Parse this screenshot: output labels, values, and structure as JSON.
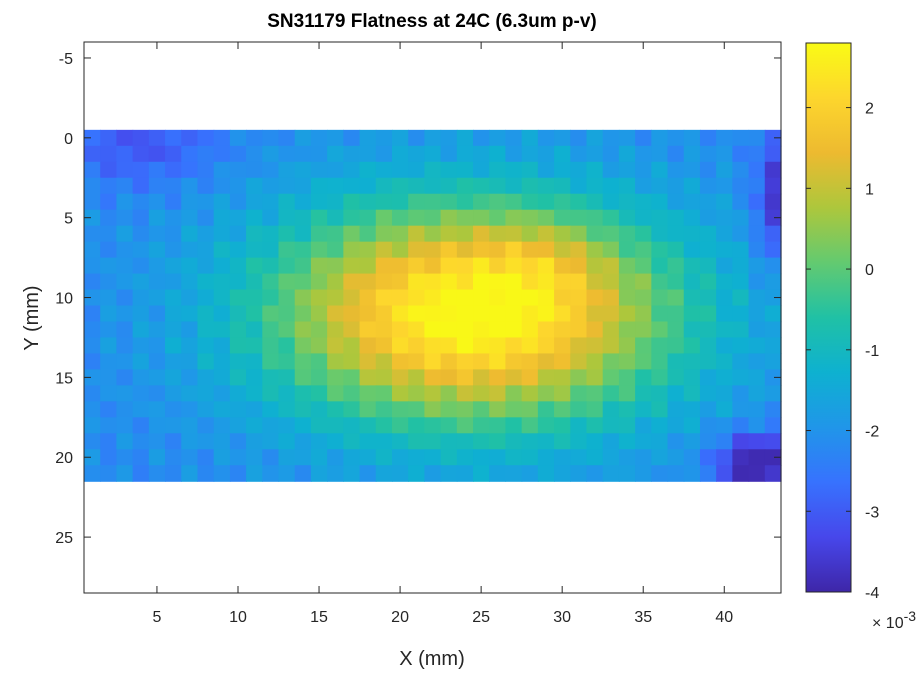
{
  "chart_data": {
    "type": "heatmap",
    "title": "SN31179 Flatness at 24C (6.3um p-v)",
    "xlabel": "X (mm)",
    "ylabel": "Y (mm)",
    "xlim": [
      0.5,
      43.5
    ],
    "ylim": [
      -6,
      28.5
    ],
    "y_reversed": true,
    "xticks": [
      5,
      10,
      15,
      20,
      25,
      30,
      35,
      40
    ],
    "yticks": [
      -5,
      0,
      5,
      10,
      15,
      20,
      25
    ],
    "grid": false,
    "colormap": "parula",
    "colorbar": {
      "ticks": [
        2,
        1,
        0,
        -1,
        -2,
        -3,
        -4
      ],
      "range": [
        -4,
        2.8
      ],
      "multiplier": "× 10",
      "multiplier_exponent": "-3"
    },
    "cells": {
      "x_start": 0.5,
      "x_step": 1,
      "nx": 43,
      "y_start": -0.5,
      "y_step": 1,
      "ny": 22,
      "value_scale": 0.001,
      "model": "gaussian hump centered near x=24.5, y=11 with peak about 2.7e-3, minima about -3.5e-3 at the bottom-right and blue edges along the top-left border",
      "landmarks": [
        {
          "x": 24.5,
          "y": 11,
          "value": 2.7
        },
        {
          "x": 29,
          "y": 9,
          "value": 1.8
        },
        {
          "x": 15,
          "y": 12,
          "value": 0.8
        },
        {
          "x": 5,
          "y": 10,
          "value": -0.2
        },
        {
          "x": 3,
          "y": 1,
          "value": -2.0
        },
        {
          "x": 42,
          "y": 20,
          "value": -3.6
        },
        {
          "x": 43,
          "y": 3,
          "value": -3.0
        },
        {
          "x": 20,
          "y": 20,
          "value": -1.0
        }
      ]
    }
  }
}
